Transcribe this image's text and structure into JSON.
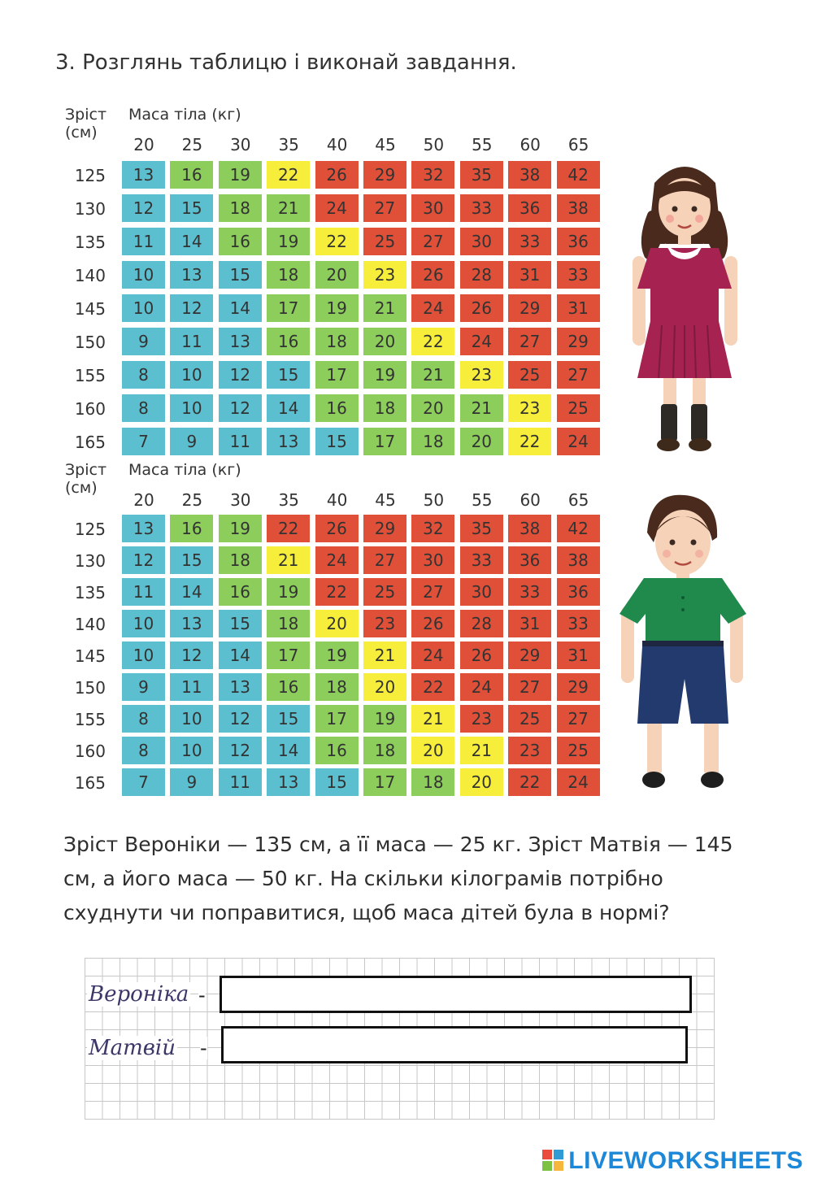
{
  "title": "3. Розглянь таблицю і виконай завдання.",
  "colors": {
    "blue": "#5cbfcf",
    "teal": "#74c4b2",
    "green": "#8ccd5b",
    "yellow": "#f6ee3a",
    "red": "#e05038"
  },
  "chart_data": [
    {
      "type": "table",
      "row_axis_label": "Зріст (см)",
      "col_axis_label": "Маса тіла (кг)",
      "columns": [
        "20",
        "25",
        "30",
        "35",
        "40",
        "45",
        "50",
        "55",
        "60",
        "65"
      ],
      "rows": [
        "125",
        "130",
        "135",
        "140",
        "145",
        "150",
        "155",
        "160",
        "165"
      ],
      "values": [
        [
          13,
          16,
          19,
          22,
          26,
          29,
          32,
          35,
          38,
          42
        ],
        [
          12,
          15,
          18,
          21,
          24,
          27,
          30,
          33,
          36,
          38
        ],
        [
          11,
          14,
          16,
          19,
          22,
          25,
          27,
          30,
          33,
          36
        ],
        [
          10,
          13,
          15,
          18,
          20,
          23,
          26,
          28,
          31,
          33
        ],
        [
          10,
          12,
          14,
          17,
          19,
          21,
          24,
          26,
          29,
          31
        ],
        [
          9,
          11,
          13,
          16,
          18,
          20,
          22,
          24,
          27,
          29
        ],
        [
          8,
          10,
          12,
          15,
          17,
          19,
          21,
          23,
          25,
          27
        ],
        [
          8,
          10,
          12,
          14,
          16,
          18,
          20,
          21,
          23,
          25
        ],
        [
          7,
          9,
          11,
          13,
          15,
          17,
          18,
          20,
          22,
          24
        ]
      ],
      "colors": [
        [
          "blue",
          "green",
          "green",
          "yellow",
          "red",
          "red",
          "red",
          "red",
          "red",
          "red"
        ],
        [
          "blue",
          "blue",
          "green",
          "green",
          "red",
          "red",
          "red",
          "red",
          "red",
          "red"
        ],
        [
          "blue",
          "blue",
          "green",
          "green",
          "yellow",
          "red",
          "red",
          "red",
          "red",
          "red"
        ],
        [
          "blue",
          "blue",
          "blue",
          "green",
          "green",
          "yellow",
          "red",
          "red",
          "red",
          "red"
        ],
        [
          "blue",
          "blue",
          "blue",
          "green",
          "green",
          "green",
          "red",
          "red",
          "red",
          "red"
        ],
        [
          "blue",
          "blue",
          "blue",
          "green",
          "green",
          "green",
          "yellow",
          "red",
          "red",
          "red"
        ],
        [
          "blue",
          "blue",
          "blue",
          "blue",
          "green",
          "green",
          "green",
          "yellow",
          "red",
          "red"
        ],
        [
          "blue",
          "blue",
          "blue",
          "blue",
          "green",
          "green",
          "green",
          "green",
          "yellow",
          "red"
        ],
        [
          "blue",
          "blue",
          "blue",
          "blue",
          "blue",
          "green",
          "green",
          "green",
          "yellow",
          "red"
        ]
      ]
    },
    {
      "type": "table",
      "row_axis_label": "Зріст (см)",
      "col_axis_label": "Маса тіла (кг)",
      "columns": [
        "20",
        "25",
        "30",
        "35",
        "40",
        "45",
        "50",
        "55",
        "60",
        "65"
      ],
      "rows": [
        "125",
        "130",
        "135",
        "140",
        "145",
        "150",
        "155",
        "160",
        "165"
      ],
      "values": [
        [
          13,
          16,
          19,
          22,
          26,
          29,
          32,
          35,
          38,
          42
        ],
        [
          12,
          15,
          18,
          21,
          24,
          27,
          30,
          33,
          36,
          38
        ],
        [
          11,
          14,
          16,
          19,
          22,
          25,
          27,
          30,
          33,
          36
        ],
        [
          10,
          13,
          15,
          18,
          20,
          23,
          26,
          28,
          31,
          33
        ],
        [
          10,
          12,
          14,
          17,
          19,
          21,
          24,
          26,
          29,
          31
        ],
        [
          9,
          11,
          13,
          16,
          18,
          20,
          22,
          24,
          27,
          29
        ],
        [
          8,
          10,
          12,
          15,
          17,
          19,
          21,
          23,
          25,
          27
        ],
        [
          8,
          10,
          12,
          14,
          16,
          18,
          20,
          21,
          23,
          25
        ],
        [
          7,
          9,
          11,
          13,
          15,
          17,
          18,
          20,
          22,
          24
        ]
      ],
      "colors": [
        [
          "blue",
          "green",
          "green",
          "red",
          "red",
          "red",
          "red",
          "red",
          "red",
          "red"
        ],
        [
          "blue",
          "blue",
          "green",
          "yellow",
          "red",
          "red",
          "red",
          "red",
          "red",
          "red"
        ],
        [
          "blue",
          "blue",
          "green",
          "green",
          "red",
          "red",
          "red",
          "red",
          "red",
          "red"
        ],
        [
          "blue",
          "blue",
          "blue",
          "green",
          "yellow",
          "red",
          "red",
          "red",
          "red",
          "red"
        ],
        [
          "blue",
          "blue",
          "blue",
          "green",
          "green",
          "yellow",
          "red",
          "red",
          "red",
          "red"
        ],
        [
          "blue",
          "blue",
          "blue",
          "green",
          "green",
          "yellow",
          "red",
          "red",
          "red",
          "red"
        ],
        [
          "blue",
          "blue",
          "blue",
          "blue",
          "green",
          "green",
          "yellow",
          "red",
          "red",
          "red"
        ],
        [
          "blue",
          "blue",
          "blue",
          "blue",
          "green",
          "green",
          "yellow",
          "yellow",
          "red",
          "red"
        ],
        [
          "blue",
          "blue",
          "blue",
          "blue",
          "blue",
          "green",
          "green",
          "yellow",
          "red",
          "red"
        ]
      ]
    }
  ],
  "figures": {
    "girl": "girl-in-red-dress-illustration",
    "boy": "boy-in-green-shirt-illustration"
  },
  "question": "Зріст Вероніки — 135 см, а її маса — 25 кг. Зріст Матвія — 145 см, а його маса — 50 кг. На скільки кілограмів потрібно схуднути чи поправитися, щоб маса дітей була в нормі?",
  "answers": [
    {
      "label": "Вероніка",
      "dash": "-",
      "value": ""
    },
    {
      "label": "Матвій",
      "dash": "-",
      "value": ""
    }
  ],
  "footer": {
    "brand": "LIVEWORKSHEETS"
  }
}
